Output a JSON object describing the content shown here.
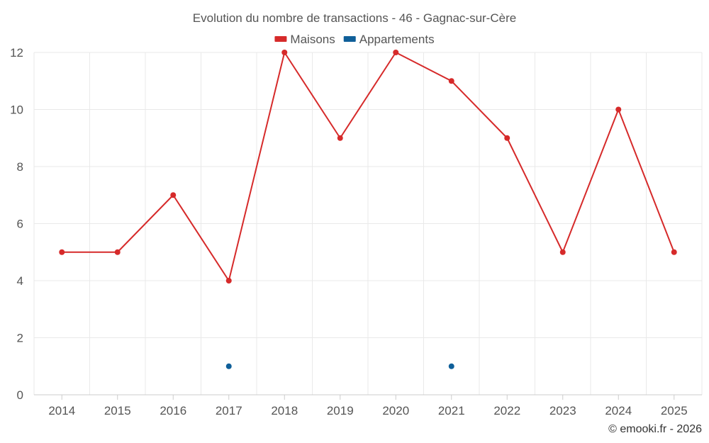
{
  "chart_data": {
    "type": "line",
    "title": "Evolution du nombre de transactions - 46 - Gagnac-sur-Cère",
    "categories": [
      "2014",
      "2015",
      "2016",
      "2017",
      "2018",
      "2019",
      "2020",
      "2021",
      "2022",
      "2023",
      "2024",
      "2025"
    ],
    "series": [
      {
        "name": "Maisons",
        "color": "#d62a2a",
        "values": [
          5,
          5,
          7,
          4,
          12,
          9,
          12,
          11,
          9,
          5,
          10,
          5
        ]
      },
      {
        "name": "Appartements",
        "color": "#0f5f99",
        "values": [
          null,
          null,
          null,
          1,
          null,
          null,
          null,
          1,
          null,
          null,
          null,
          null
        ]
      }
    ],
    "ylim": [
      0,
      12
    ],
    "yticks": [
      0,
      2,
      4,
      6,
      8,
      10,
      12
    ],
    "grid": true,
    "legend": "top-center",
    "credit": "© emooki.fr - 2026"
  }
}
